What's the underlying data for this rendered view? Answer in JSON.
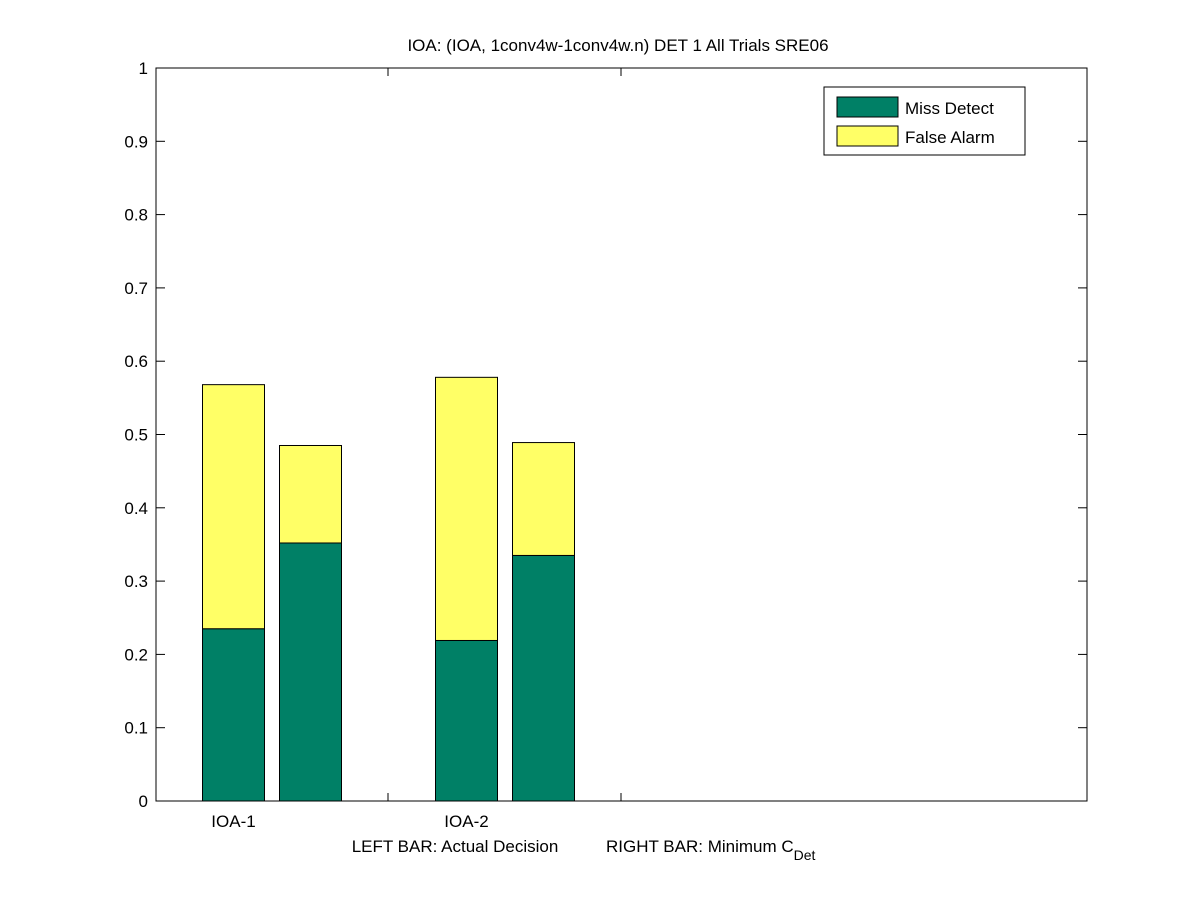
{
  "chart_data": {
    "type": "bar",
    "stacked": true,
    "title": "IOA: (IOA, 1conv4w-1conv4w.n) DET 1 All Trials SRE06",
    "xlabel": {
      "left_text": "LEFT BAR: Actual Decision",
      "right_text": "RIGHT BAR: Minimum C",
      "right_subscript": "Det"
    },
    "ylabel": "",
    "ylim": [
      0,
      1
    ],
    "yticks": [
      "0",
      "0.1",
      "0.2",
      "0.3",
      "0.4",
      "0.5",
      "0.6",
      "0.7",
      "0.8",
      "0.9",
      "1"
    ],
    "categories": [
      "IOA-1",
      "IOA-2"
    ],
    "bars_per_category": [
      "Actual Decision",
      "Minimum C_Det"
    ],
    "series": [
      {
        "name": "Miss Detect",
        "color": "#008066",
        "values": [
          [
            0.235,
            0.352
          ],
          [
            0.219,
            0.335
          ]
        ]
      },
      {
        "name": "False Alarm",
        "color": "#ffff66",
        "values": [
          [
            0.333,
            0.133
          ],
          [
            0.359,
            0.154
          ]
        ]
      }
    ],
    "legend": {
      "position": "top-right",
      "entries": [
        "Miss Detect",
        "False Alarm"
      ]
    },
    "grid": false,
    "colors": {
      "miss_detect": "#008066",
      "false_alarm": "#ffff66",
      "axes": "#000000",
      "background": "#ffffff"
    }
  }
}
